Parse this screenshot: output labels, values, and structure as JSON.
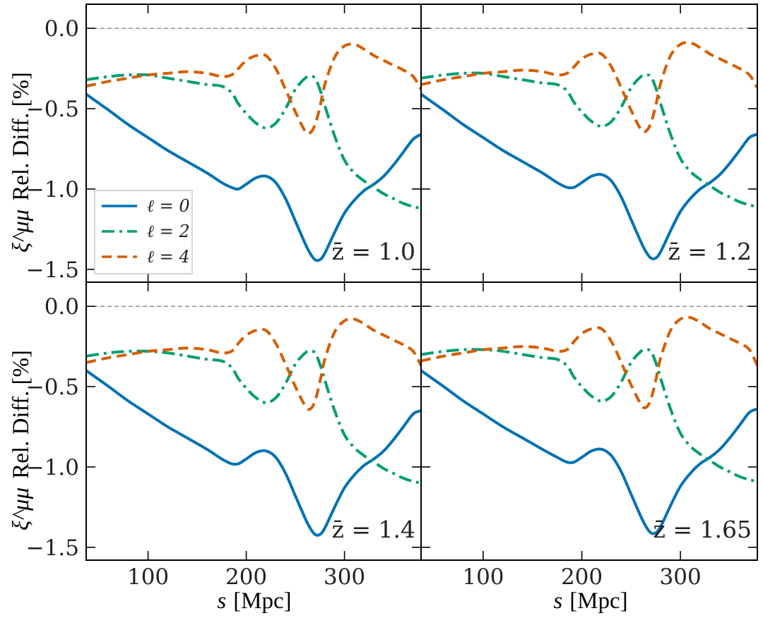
{
  "chart_data": {
    "type": "line",
    "layout": "2x2 grid, shared axes",
    "xlabel_var": "s",
    "xlabel_unit": "[Mpc]",
    "ylabel_sym": "ξ^μμ",
    "ylabel_text": "Rel. Diff. [%]",
    "xlim": [
      37,
      378
    ],
    "ylim": [
      -1.58,
      0.15
    ],
    "xticks": [
      100,
      200,
      300
    ],
    "xtick_labels": [
      "100",
      "200",
      "300"
    ],
    "yticks": [
      0.0,
      -0.5,
      -1.0,
      -1.5
    ],
    "ytick_labels": [
      "0.0",
      "−0.5",
      "−1.0",
      "−1.5"
    ],
    "reference_line": {
      "y": 0.0,
      "style": "dashed",
      "color": "#888888"
    },
    "legend": {
      "placement": "lower-left of top-left panel",
      "entries": [
        {
          "series": "l0",
          "label": "ℓ = 0"
        },
        {
          "series": "l2",
          "label": "ℓ = 2"
        },
        {
          "series": "l4",
          "label": "ℓ = 4"
        }
      ]
    },
    "series_style": {
      "l0": {
        "color": "#0072B2",
        "dash": ""
      },
      "l2": {
        "color": "#009E73",
        "dash": "18,7,4,7"
      },
      "l4": {
        "color": "#D55E00",
        "dash": "14,8"
      }
    },
    "x": [
      37,
      60,
      80,
      100,
      120,
      140,
      160,
      175,
      185,
      192,
      200,
      210,
      220,
      230,
      240,
      250,
      260,
      265,
      270,
      275,
      280,
      290,
      300,
      310,
      320,
      330,
      340,
      350,
      360,
      370,
      378
    ],
    "panels": [
      {
        "zbar_label": "z̄ = 1.0",
        "series": {
          "l0": [
            -0.41,
            -0.51,
            -0.6,
            -0.68,
            -0.76,
            -0.83,
            -0.9,
            -0.96,
            -0.99,
            -1.0,
            -0.97,
            -0.93,
            -0.92,
            -0.96,
            -1.06,
            -1.2,
            -1.34,
            -1.4,
            -1.44,
            -1.44,
            -1.4,
            -1.27,
            -1.15,
            -1.07,
            -1.01,
            -0.97,
            -0.92,
            -0.85,
            -0.77,
            -0.69,
            -0.66
          ],
          "l2": [
            -0.32,
            -0.3,
            -0.29,
            -0.29,
            -0.31,
            -0.33,
            -0.35,
            -0.36,
            -0.4,
            -0.47,
            -0.53,
            -0.59,
            -0.62,
            -0.59,
            -0.5,
            -0.38,
            -0.31,
            -0.3,
            -0.31,
            -0.38,
            -0.48,
            -0.67,
            -0.82,
            -0.9,
            -0.95,
            -0.99,
            -1.03,
            -1.06,
            -1.09,
            -1.11,
            -1.12
          ],
          "l4": [
            -0.36,
            -0.33,
            -0.31,
            -0.29,
            -0.28,
            -0.27,
            -0.28,
            -0.3,
            -0.29,
            -0.25,
            -0.2,
            -0.17,
            -0.17,
            -0.25,
            -0.38,
            -0.52,
            -0.64,
            -0.65,
            -0.6,
            -0.49,
            -0.35,
            -0.18,
            -0.11,
            -0.1,
            -0.13,
            -0.17,
            -0.2,
            -0.23,
            -0.26,
            -0.3,
            -0.38
          ]
        }
      },
      {
        "zbar_label": "z̄ = 1.2",
        "series": {
          "l0": [
            -0.41,
            -0.51,
            -0.6,
            -0.68,
            -0.76,
            -0.83,
            -0.9,
            -0.96,
            -0.99,
            -0.99,
            -0.96,
            -0.92,
            -0.91,
            -0.95,
            -1.05,
            -1.19,
            -1.33,
            -1.39,
            -1.43,
            -1.43,
            -1.39,
            -1.26,
            -1.14,
            -1.06,
            -1.0,
            -0.96,
            -0.91,
            -0.84,
            -0.76,
            -0.68,
            -0.66
          ],
          "l2": [
            -0.31,
            -0.29,
            -0.28,
            -0.28,
            -0.3,
            -0.32,
            -0.34,
            -0.35,
            -0.39,
            -0.46,
            -0.52,
            -0.58,
            -0.61,
            -0.58,
            -0.49,
            -0.37,
            -0.3,
            -0.29,
            -0.3,
            -0.37,
            -0.47,
            -0.66,
            -0.81,
            -0.89,
            -0.94,
            -0.98,
            -1.02,
            -1.05,
            -1.08,
            -1.1,
            -1.11
          ],
          "l4": [
            -0.35,
            -0.32,
            -0.3,
            -0.28,
            -0.27,
            -0.26,
            -0.27,
            -0.29,
            -0.28,
            -0.24,
            -0.19,
            -0.16,
            -0.16,
            -0.24,
            -0.37,
            -0.51,
            -0.63,
            -0.64,
            -0.59,
            -0.48,
            -0.34,
            -0.17,
            -0.1,
            -0.09,
            -0.12,
            -0.16,
            -0.19,
            -0.22,
            -0.25,
            -0.29,
            -0.37
          ]
        }
      },
      {
        "zbar_label": "z̄ = 1.4",
        "series": {
          "l0": [
            -0.4,
            -0.5,
            -0.59,
            -0.67,
            -0.75,
            -0.82,
            -0.89,
            -0.95,
            -0.98,
            -0.98,
            -0.95,
            -0.91,
            -0.9,
            -0.94,
            -1.04,
            -1.18,
            -1.32,
            -1.38,
            -1.42,
            -1.42,
            -1.38,
            -1.25,
            -1.13,
            -1.05,
            -0.99,
            -0.95,
            -0.9,
            -0.83,
            -0.75,
            -0.67,
            -0.65
          ],
          "l2": [
            -0.31,
            -0.29,
            -0.28,
            -0.28,
            -0.29,
            -0.31,
            -0.33,
            -0.34,
            -0.38,
            -0.45,
            -0.51,
            -0.57,
            -0.6,
            -0.57,
            -0.48,
            -0.36,
            -0.29,
            -0.28,
            -0.29,
            -0.36,
            -0.46,
            -0.65,
            -0.8,
            -0.88,
            -0.93,
            -0.97,
            -1.01,
            -1.04,
            -1.07,
            -1.09,
            -1.1
          ],
          "l4": [
            -0.35,
            -0.32,
            -0.3,
            -0.28,
            -0.27,
            -0.26,
            -0.27,
            -0.29,
            -0.28,
            -0.23,
            -0.18,
            -0.15,
            -0.15,
            -0.23,
            -0.36,
            -0.5,
            -0.62,
            -0.64,
            -0.59,
            -0.47,
            -0.33,
            -0.16,
            -0.09,
            -0.08,
            -0.11,
            -0.15,
            -0.18,
            -0.21,
            -0.24,
            -0.28,
            -0.37
          ]
        }
      },
      {
        "zbar_label": "z̄ = 1.65",
        "series": {
          "l0": [
            -0.4,
            -0.5,
            -0.59,
            -0.67,
            -0.75,
            -0.82,
            -0.89,
            -0.94,
            -0.97,
            -0.97,
            -0.94,
            -0.9,
            -0.89,
            -0.93,
            -1.03,
            -1.17,
            -1.31,
            -1.37,
            -1.41,
            -1.41,
            -1.37,
            -1.24,
            -1.12,
            -1.04,
            -0.98,
            -0.94,
            -0.89,
            -0.82,
            -0.74,
            -0.66,
            -0.64
          ],
          "l2": [
            -0.3,
            -0.28,
            -0.27,
            -0.27,
            -0.28,
            -0.3,
            -0.32,
            -0.33,
            -0.37,
            -0.44,
            -0.5,
            -0.56,
            -0.59,
            -0.56,
            -0.47,
            -0.35,
            -0.28,
            -0.27,
            -0.28,
            -0.35,
            -0.45,
            -0.64,
            -0.79,
            -0.87,
            -0.92,
            -0.96,
            -1.0,
            -1.03,
            -1.06,
            -1.08,
            -1.09
          ],
          "l4": [
            -0.34,
            -0.31,
            -0.29,
            -0.27,
            -0.26,
            -0.25,
            -0.26,
            -0.28,
            -0.27,
            -0.22,
            -0.17,
            -0.14,
            -0.14,
            -0.22,
            -0.35,
            -0.49,
            -0.61,
            -0.63,
            -0.58,
            -0.46,
            -0.32,
            -0.15,
            -0.08,
            -0.07,
            -0.1,
            -0.14,
            -0.17,
            -0.2,
            -0.23,
            -0.27,
            -0.37
          ]
        }
      }
    ]
  }
}
